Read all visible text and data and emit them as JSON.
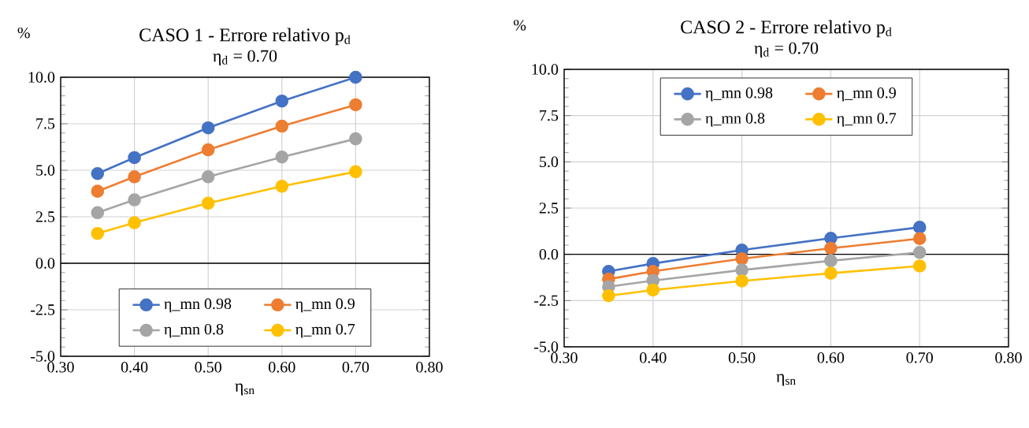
{
  "chart_data": [
    {
      "type": "line",
      "title": "CASO 1 - Errore relativo p$_{d}$",
      "subtitle": "η$_{d}$ = 0.70",
      "xlabel": "η$_{sn}$",
      "ylabel": "%",
      "x": [
        0.35,
        0.4,
        0.5,
        0.6,
        0.7
      ],
      "series": [
        {
          "name": "η_mn 0.98",
          "color": "#4472c4",
          "values": [
            4.82,
            5.68,
            7.28,
            8.72,
            10.0
          ]
        },
        {
          "name": "η_mn 0.9",
          "color": "#ed7d31",
          "values": [
            3.87,
            4.65,
            6.1,
            7.37,
            8.52
          ]
        },
        {
          "name": "η_mn 0.8",
          "color": "#a5a5a5",
          "values": [
            2.72,
            3.41,
            4.65,
            5.71,
            6.69
          ]
        },
        {
          "name": "η_mn 0.7",
          "color": "#ffc000",
          "values": [
            1.6,
            2.18,
            3.23,
            4.14,
            4.92
          ]
        }
      ],
      "xlim": [
        0.3,
        0.8
      ],
      "ylim": [
        -5,
        10
      ],
      "xticks": [
        {
          "value": 0.3,
          "label": "0.30"
        },
        {
          "value": 0.4,
          "label": "0.40"
        },
        {
          "value": 0.5,
          "label": "0.50"
        },
        {
          "value": 0.6,
          "label": "0.60"
        },
        {
          "value": 0.7,
          "label": "0.70"
        },
        {
          "value": 0.8,
          "label": "0.80"
        }
      ],
      "yticks": [
        {
          "value": -5,
          "label": "-5.0"
        },
        {
          "value": -2.5,
          "label": "-2.5"
        },
        {
          "value": 0,
          "label": "0.0"
        },
        {
          "value": 2.5,
          "label": "2.5"
        },
        {
          "value": 5,
          "label": "5.0"
        },
        {
          "value": 7.5,
          "label": "7.5"
        },
        {
          "value": 10,
          "label": "10.0"
        }
      ],
      "grid": true,
      "legend": "bottom",
      "marker": "circle",
      "line_style": "solid"
    },
    {
      "type": "line",
      "title": "CASO 2 - Errore relativo p$_{d}$",
      "subtitle": "η$_{d}$ = 0.70",
      "xlabel": "η$_{sn}$",
      "ylabel": "%",
      "x": [
        0.35,
        0.4,
        0.5,
        0.6,
        0.7
      ],
      "series": [
        {
          "name": "η_mn 0.98",
          "color": "#4472c4",
          "values": [
            -0.92,
            -0.5,
            0.23,
            0.87,
            1.46
          ]
        },
        {
          "name": "η_mn 0.9",
          "color": "#ed7d31",
          "values": [
            -1.34,
            -0.92,
            -0.24,
            0.33,
            0.85
          ]
        },
        {
          "name": "η_mn 0.8",
          "color": "#a5a5a5",
          "values": [
            -1.75,
            -1.42,
            -0.85,
            -0.35,
            0.1
          ]
        },
        {
          "name": "η_mn 0.7",
          "color": "#ffc000",
          "values": [
            -2.24,
            -1.93,
            -1.44,
            -1.02,
            -0.63
          ]
        }
      ],
      "xlim": [
        0.3,
        0.8
      ],
      "ylim": [
        -5,
        10
      ],
      "xticks": [
        {
          "value": 0.3,
          "label": "0.30"
        },
        {
          "value": 0.4,
          "label": "0.40"
        },
        {
          "value": 0.5,
          "label": "0.50"
        },
        {
          "value": 0.6,
          "label": "0.60"
        },
        {
          "value": 0.7,
          "label": "0.70"
        },
        {
          "value": 0.8,
          "label": "0.80"
        }
      ],
      "yticks": [
        {
          "value": -5,
          "label": "-5.0"
        },
        {
          "value": -2.5,
          "label": "-2.5"
        },
        {
          "value": 0,
          "label": "0.0"
        },
        {
          "value": 2.5,
          "label": "2.5"
        },
        {
          "value": 5,
          "label": "5.0"
        },
        {
          "value": 7.5,
          "label": "7.5"
        },
        {
          "value": 10,
          "label": "10.0"
        }
      ],
      "grid": true,
      "legend": "top",
      "marker": "circle",
      "line_style": "solid"
    }
  ]
}
